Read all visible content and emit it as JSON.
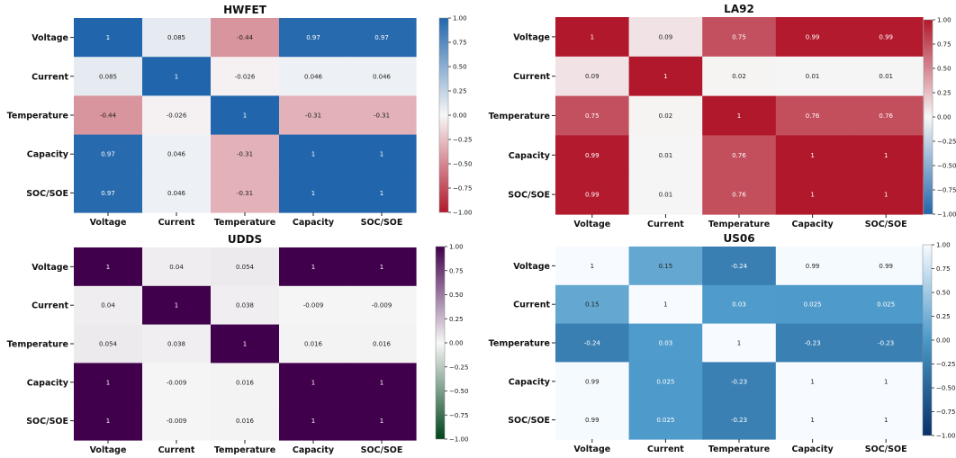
{
  "chart_data": [
    {
      "type": "heatmap",
      "title": "HWFET",
      "colormap": "RdBu",
      "colors": [
        "#b2182b",
        "#f7f7f7",
        "#2166ac"
      ],
      "vmin": -1,
      "vmax": 1,
      "colorbar_ticks": [
        "1.00",
        "0.75",
        "0.50",
        "0.25",
        "0.00",
        "−0.25",
        "−0.50",
        "−0.75",
        "−1.00"
      ],
      "rows": [
        "Voltage",
        "Current",
        "Temperature",
        "Capacity",
        "SOC/SOE"
      ],
      "cols": [
        "Voltage",
        "Current",
        "Temperature",
        "Capacity",
        "SOC/SOE"
      ],
      "values": [
        [
          1,
          0.085,
          -0.44,
          0.97,
          0.97
        ],
        [
          0.085,
          1,
          -0.026,
          0.046,
          0.046
        ],
        [
          -0.44,
          -0.026,
          1,
          -0.31,
          -0.31
        ],
        [
          0.97,
          0.046,
          -0.31,
          1,
          1
        ],
        [
          0.97,
          0.046,
          -0.31,
          1,
          1
        ]
      ],
      "labels": [
        [
          "1",
          "0.085",
          "-0.44",
          "0.97",
          "0.97"
        ],
        [
          "0.085",
          "1",
          "-0.026",
          "0.046",
          "0.046"
        ],
        [
          "-0.44",
          "-0.026",
          "1",
          "-0.31",
          "-0.31"
        ],
        [
          "0.97",
          "0.046",
          "-0.31",
          "1",
          "1"
        ],
        [
          "0.97",
          "0.046",
          "-0.31",
          "1",
          "1"
        ]
      ]
    },
    {
      "type": "heatmap",
      "title": "LA92",
      "colormap": "RdBu_r",
      "colors": [
        "#2166ac",
        "#f7f7f7",
        "#b2182b"
      ],
      "vmin": -1,
      "vmax": 1,
      "colorbar_ticks": [
        "1.00",
        "0.75",
        "0.50",
        "0.25",
        "0.00",
        "−0.25",
        "−0.50",
        "−0.75",
        "−1.00"
      ],
      "rows": [
        "Voltage",
        "Current",
        "Temperature",
        "Capacity",
        "SOC/SOE"
      ],
      "cols": [
        "Voltage",
        "Current",
        "Temperature",
        "Capacity",
        "SOC/SOE"
      ],
      "values": [
        [
          1,
          0.09,
          0.75,
          0.99,
          0.99
        ],
        [
          0.09,
          1,
          0.02,
          0.01,
          0.01
        ],
        [
          0.75,
          0.02,
          1,
          0.76,
          0.76
        ],
        [
          0.99,
          0.01,
          0.76,
          1,
          1
        ],
        [
          0.99,
          0.01,
          0.76,
          1,
          1
        ]
      ],
      "labels": [
        [
          "1",
          "0.09",
          "0.75",
          "0.99",
          "0.99"
        ],
        [
          "0.09",
          "1",
          "0.02",
          "0.01",
          "0.01"
        ],
        [
          "0.75",
          "0.02",
          "1",
          "0.76",
          "0.76"
        ],
        [
          "0.99",
          "0.01",
          "0.76",
          "1",
          "1"
        ],
        [
          "0.99",
          "0.01",
          "0.76",
          "1",
          "1"
        ]
      ]
    },
    {
      "type": "heatmap",
      "title": "UDDS",
      "colormap": "PRGn",
      "colors": [
        "#00441b",
        "#f7f7f7",
        "#40004b"
      ],
      "vmin": -1,
      "vmax": 1,
      "colorbar_ticks": [
        "1.00",
        "0.75",
        "0.50",
        "0.25",
        "0.00",
        "−0.25",
        "−0.50",
        "−0.75",
        "−1.00"
      ],
      "rows": [
        "Voltage",
        "Current",
        "Temperature",
        "Capacity",
        "SOC/SOE"
      ],
      "cols": [
        "Voltage",
        "Current",
        "Temperature",
        "Capacity",
        "SOC/SOE"
      ],
      "values": [
        [
          1,
          0.04,
          0.054,
          1,
          1
        ],
        [
          0.04,
          1,
          0.038,
          -0.009,
          -0.009
        ],
        [
          0.054,
          0.038,
          1,
          0.016,
          0.016
        ],
        [
          1,
          -0.009,
          0.016,
          1,
          1
        ],
        [
          1,
          -0.009,
          0.016,
          1,
          1
        ]
      ],
      "labels": [
        [
          "1",
          "0.04",
          "0.054",
          "1",
          "1"
        ],
        [
          "0.04",
          "1",
          "0.038",
          "-0.009",
          "-0.009"
        ],
        [
          "0.054",
          "0.038",
          "1",
          "0.016",
          "0.016"
        ],
        [
          "1",
          "-0.009",
          "0.016",
          "1",
          "1"
        ],
        [
          "1",
          "-0.009",
          "0.016",
          "1",
          "1"
        ]
      ]
    },
    {
      "type": "heatmap",
      "title": "US06",
      "colormap": "Blues_r",
      "colors": [
        "#08306b",
        "#4a98c9",
        "#f7fbff"
      ],
      "vmin": -1,
      "vmax": 1,
      "colorbar_ticks": [
        "1.00",
        "0.75",
        "0.50",
        "0.25",
        "0.00",
        "−0.25",
        "−0.50",
        "−0.75",
        "−1.00"
      ],
      "rows": [
        "Voltage",
        "Current",
        "Temperature",
        "Capacity",
        "SOC/SOE"
      ],
      "cols": [
        "Voltage",
        "Current",
        "Temperature",
        "Capacity",
        "SOC/SOE"
      ],
      "values": [
        [
          1,
          0.15,
          -0.24,
          0.99,
          0.99
        ],
        [
          0.15,
          1,
          0.03,
          0.025,
          0.025
        ],
        [
          -0.24,
          0.03,
          1,
          -0.23,
          -0.23
        ],
        [
          0.99,
          0.025,
          -0.23,
          1,
          1
        ],
        [
          0.99,
          0.025,
          -0.23,
          1,
          1
        ]
      ],
      "labels": [
        [
          "1",
          "0.15",
          "-0.24",
          "0.99",
          "0.99"
        ],
        [
          "0.15",
          "1",
          "0.03",
          "0.025",
          "0.025"
        ],
        [
          "-0.24",
          "0.03",
          "1",
          "-0.23",
          "-0.23"
        ],
        [
          "0.99",
          "0.025",
          "-0.23",
          "1",
          "1"
        ],
        [
          "0.99",
          "0.025",
          "-0.23",
          "1",
          "1"
        ]
      ]
    }
  ]
}
